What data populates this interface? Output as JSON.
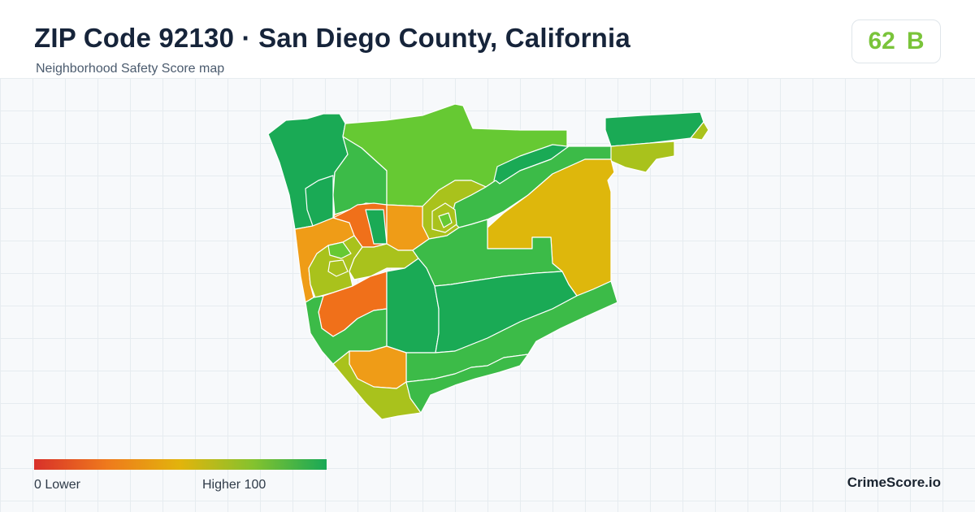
{
  "header": {
    "title": "ZIP Code 92130 · San Diego County, California",
    "subtitle": "Neighborhood Safety Score map"
  },
  "score_badge": {
    "score": "62",
    "grade": "B",
    "color": "#7ac43a"
  },
  "legend": {
    "low_label": "0  Lower",
    "high_label": "Higher  100",
    "colors": [
      "#d8302a",
      "#ef7a1c",
      "#e2b40c",
      "#84c22e",
      "#18a957"
    ]
  },
  "brand": "CrimeScore.io",
  "map_colors": {
    "dark_green": "#1aaa55",
    "green": "#3cbb48",
    "light_green": "#66c933",
    "yellow_green": "#a9c21c",
    "yellow": "#deb70c",
    "orange": "#ef9c17",
    "red_orange": "#f0701a"
  }
}
